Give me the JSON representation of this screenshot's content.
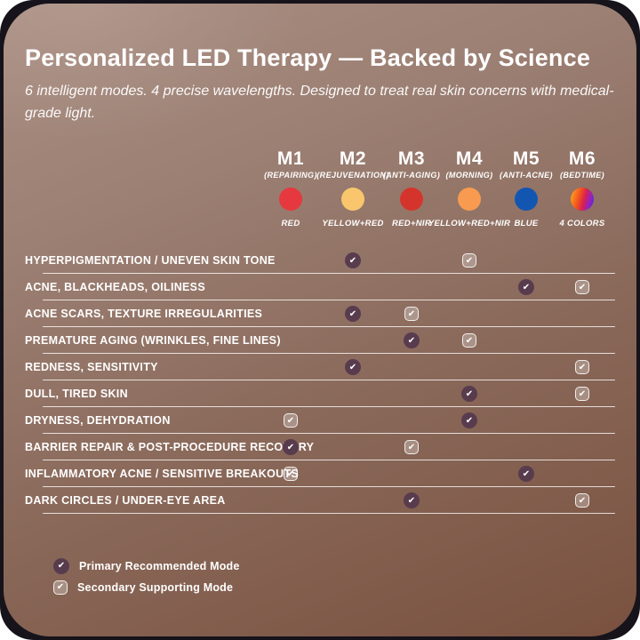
{
  "page": {
    "title": "Personalized LED Therapy — Backed by Science",
    "subtitle": "6 intelligent modes. 4 precise wavelengths. Designed to treat real skin concerns with medical-grade light."
  },
  "chart_data": {
    "type": "table",
    "title": "Personalized LED Therapy — Backed by Science",
    "legend_position": "bottom-left",
    "modes": [
      {
        "code": "M1",
        "label": "(REPAIRING)",
        "wavelength": "RED",
        "color": "#e6383f"
      },
      {
        "code": "M2",
        "label": "(REJUVENATION)",
        "wavelength": "YELLOW+RED",
        "color": "#f9c66d"
      },
      {
        "code": "M3",
        "label": "(ANTI-AGING)",
        "wavelength": "RED+NIR",
        "color": "#d5342d"
      },
      {
        "code": "M4",
        "label": "(MORNING)",
        "wavelength": "YELLOW+RED+NIR",
        "color": "#f89b50"
      },
      {
        "code": "M5",
        "label": "(ANTI-ACNE)",
        "wavelength": "BLUE",
        "color": "#1356b2"
      },
      {
        "code": "M6",
        "label": "(BEDTIME)",
        "wavelength": "4 COLORS",
        "color": "linear-gradient(105deg,#ffb21e 0%,#f2501e 38%,#d62055 58%,#8e22c6 80%,#3a31e1 100%)"
      }
    ],
    "rows": [
      {
        "label": "HYPERPIGMENTATION / UNEVEN SKIN TONE",
        "marks": {
          "M2": "primary",
          "M4": "secondary"
        }
      },
      {
        "label": "ACNE, BLACKHEADS, OILINESS",
        "marks": {
          "M5": "primary",
          "M6": "secondary"
        }
      },
      {
        "label": "ACNE SCARS, TEXTURE IRREGULARITIES",
        "marks": {
          "M2": "primary",
          "M3": "secondary"
        }
      },
      {
        "label": "PREMATURE AGING (WRINKLES, FINE LINES)",
        "marks": {
          "M3": "primary",
          "M4": "secondary"
        }
      },
      {
        "label": "REDNESS, SENSITIVITY",
        "marks": {
          "M2": "primary",
          "M6": "secondary"
        }
      },
      {
        "label": "DULL, TIRED SKIN",
        "marks": {
          "M4": "primary",
          "M6": "secondary"
        }
      },
      {
        "label": "DRYNESS, DEHYDRATION",
        "marks": {
          "M1": "secondary",
          "M4": "primary"
        }
      },
      {
        "label": "BARRIER REPAIR & POST-PROCEDURE RECOVERY",
        "marks": {
          "M1": "primary",
          "M3": "secondary"
        }
      },
      {
        "label": "INFLAMMATORY ACNE / SENSITIVE BREAKOUTS",
        "marks": {
          "M1": "secondary",
          "M5": "primary"
        }
      },
      {
        "label": "DARK CIRCLES / UNDER-EYE AREA",
        "marks": {
          "M3": "primary",
          "M6": "secondary"
        }
      }
    ]
  },
  "legend": {
    "primary": "Primary Recommended Mode",
    "secondary": "Secondary Supporting Mode"
  },
  "icons": {
    "check_glyph": "✔"
  },
  "colors": {
    "primary_mark": "#583c4e",
    "bezel": "#16131b",
    "card_gradient_top": "#aa8e82",
    "card_gradient_bottom": "#7a513f",
    "separator": "rgba(255,255,255,0.78)"
  }
}
